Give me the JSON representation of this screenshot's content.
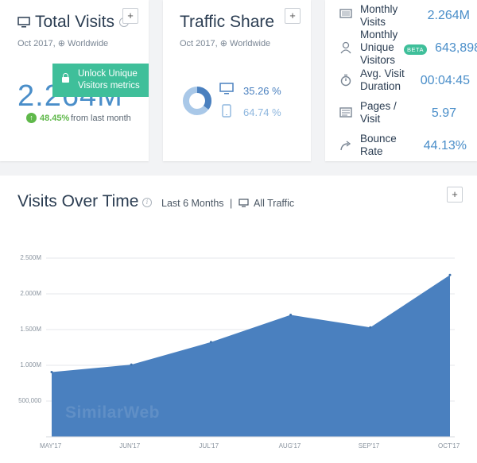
{
  "total_visits": {
    "title": "Total Visits",
    "subtitle": "Oct 2017, ⊕ Worldwide",
    "value": "2.264M",
    "unlock_text": "Unlock Unique Visitors metrics",
    "change": "48.45%",
    "change_suffix": "from last month",
    "add": "+"
  },
  "traffic_share": {
    "title": "Traffic Share",
    "subtitle": "Oct 2017, ⊕ Worldwide",
    "desktop": "35.26 %",
    "mobile": "64.74 %",
    "desktop_fraction": 0.3526,
    "add": "+"
  },
  "metrics": [
    {
      "label": "Monthly Visits",
      "value": "2.264M",
      "icon": "monitor-icon"
    },
    {
      "label": "Monthly Unique Visitors",
      "value": "643,898",
      "badge": "BETA",
      "icon": "person-icon"
    },
    {
      "label": "Avg. Visit Duration",
      "value": "00:04:45",
      "icon": "stopwatch-icon"
    },
    {
      "label": "Pages / Visit",
      "value": "5.97",
      "icon": "pages-icon"
    },
    {
      "label": "Bounce Rate",
      "value": "44.13%",
      "icon": "bounce-arrow-icon"
    }
  ],
  "visits_over_time": {
    "title": "Visits Over Time",
    "period": "Last 6 Months",
    "separator": "|",
    "traffic": "All Traffic",
    "add": "+",
    "watermark": "SimilarWeb"
  },
  "colors": {
    "accent": "#4a8ec9",
    "area": "#4a80bf",
    "green": "#3fbf9a",
    "positive": "#5fb84a"
  },
  "chart_data": {
    "type": "area",
    "categories": [
      "MAY'17",
      "JUN'17",
      "JUL'17",
      "AUG'17",
      "SEP'17",
      "OCT'17"
    ],
    "values": [
      905000,
      1010000,
      1325000,
      1705000,
      1530000,
      2264000
    ],
    "y_ticks": [
      "500,000",
      "1.000M",
      "1.500M",
      "2.000M",
      "2.500M"
    ],
    "y_tick_values": [
      500000,
      1000000,
      1500000,
      2000000,
      2500000
    ],
    "ylim": [
      0,
      2500000
    ],
    "grid": true
  }
}
